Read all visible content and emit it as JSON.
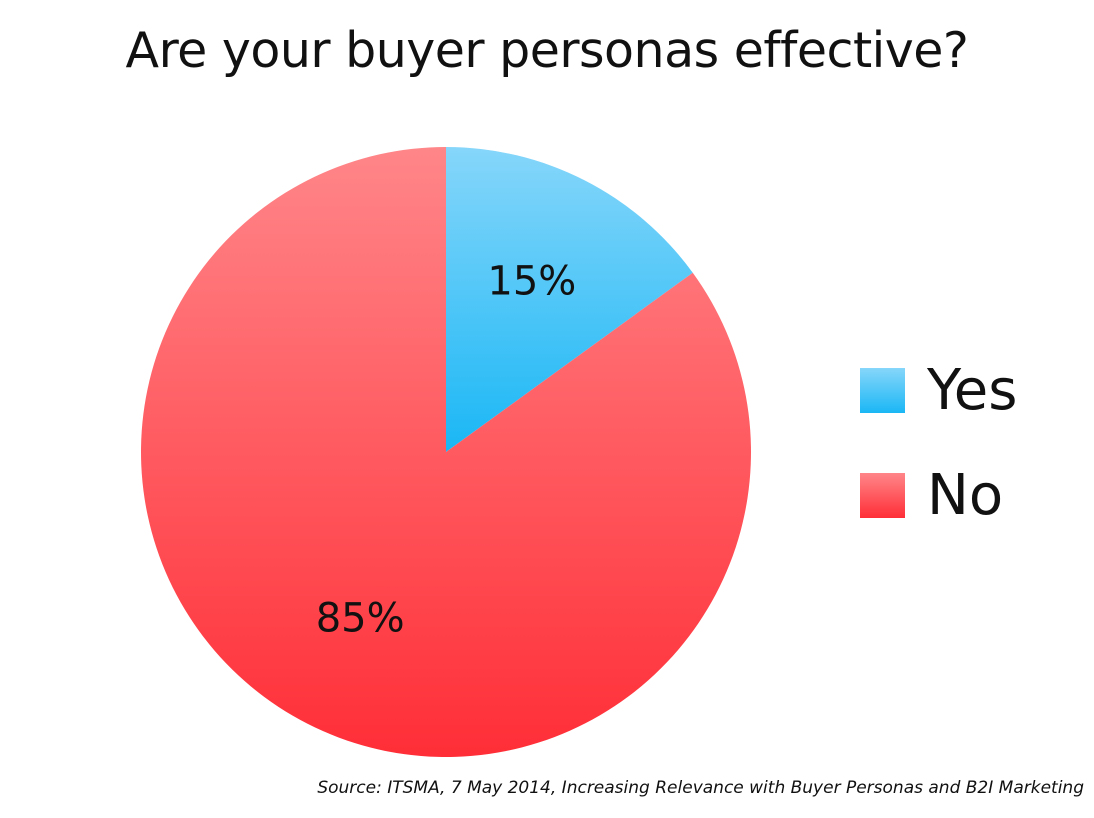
{
  "chart_data": {
    "type": "pie",
    "title": "Are your buyer personas effective?",
    "categories": [
      "Yes",
      "No"
    ],
    "values": [
      15,
      85
    ],
    "data_labels": [
      "15%",
      "85%"
    ],
    "legend_position": "right",
    "colors": {
      "Yes": {
        "light": "#86D6FA",
        "dark": "#1AB7F5"
      },
      "No": {
        "light": "#FF8689",
        "dark": "#FF2E37"
      }
    }
  },
  "source_note": "Source: ITSMA, 7 May 2014, Increasing Relevance with Buyer Personas and B2I Marketing"
}
